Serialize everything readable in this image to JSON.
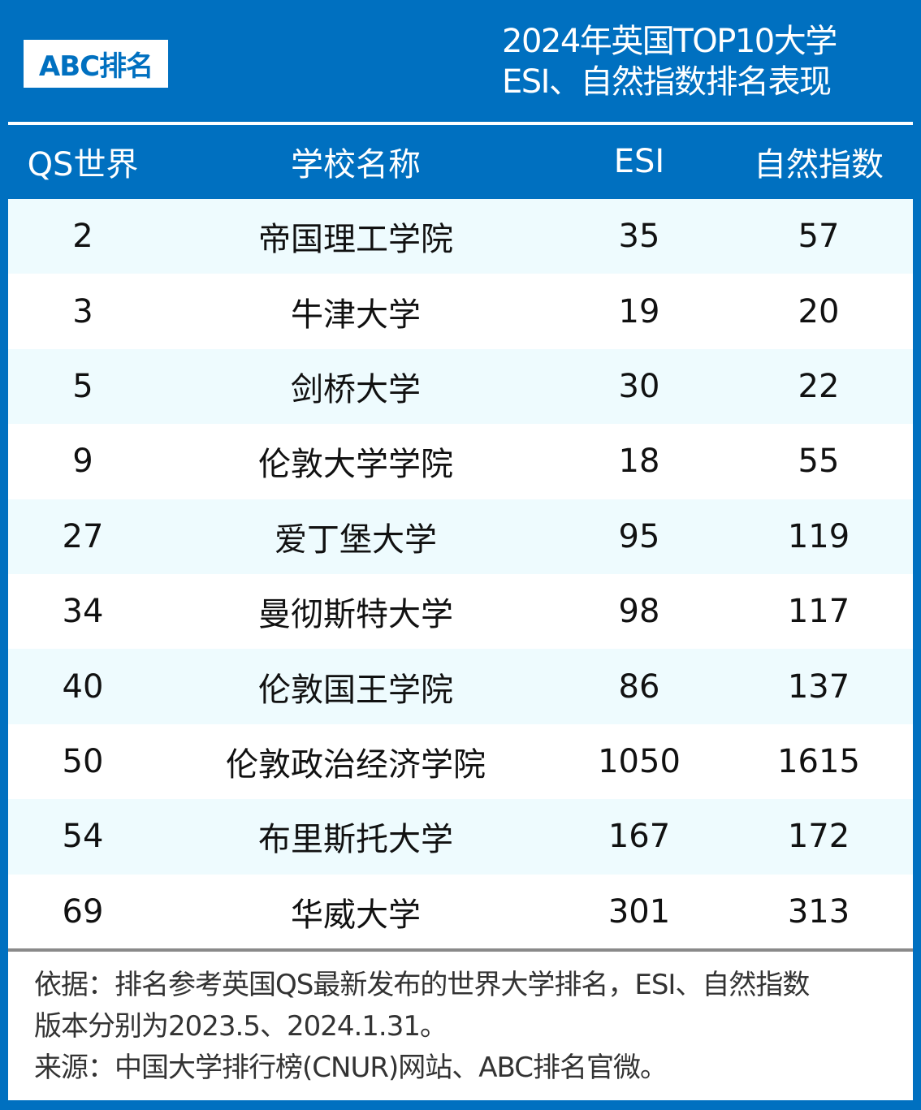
{
  "logo": "ABC排名",
  "title": {
    "line1": "2024年英国TOP10大学",
    "line2": "ESI、自然指数排名表现"
  },
  "table": {
    "headers": [
      "QS世界",
      "学校名称",
      "ESI",
      "自然指数"
    ],
    "rows": [
      [
        "2",
        "帝国理工学院",
        "35",
        "57"
      ],
      [
        "3",
        "牛津大学",
        "19",
        "20"
      ],
      [
        "5",
        "剑桥大学",
        "30",
        "22"
      ],
      [
        "9",
        "伦敦大学学院",
        "18",
        "55"
      ],
      [
        "27",
        "爱丁堡大学",
        "95",
        "119"
      ],
      [
        "34",
        "曼彻斯特大学",
        "98",
        "117"
      ],
      [
        "40",
        "伦敦国王学院",
        "86",
        "137"
      ],
      [
        "50",
        "伦敦政治经济学院",
        "1050",
        "1615"
      ],
      [
        "54",
        "布里斯托大学",
        "167",
        "172"
      ],
      [
        "69",
        "华威大学",
        "301",
        "313"
      ]
    ]
  },
  "footer": {
    "line1": "依据：排名参考英国QS最新发布的世界大学排名，ESI、自然指数",
    "line2": "版本分别为2023.5、2024.1.31。",
    "line3": "来源：中国大学排行榜(CNUR)网站、ABC排名官微。"
  }
}
